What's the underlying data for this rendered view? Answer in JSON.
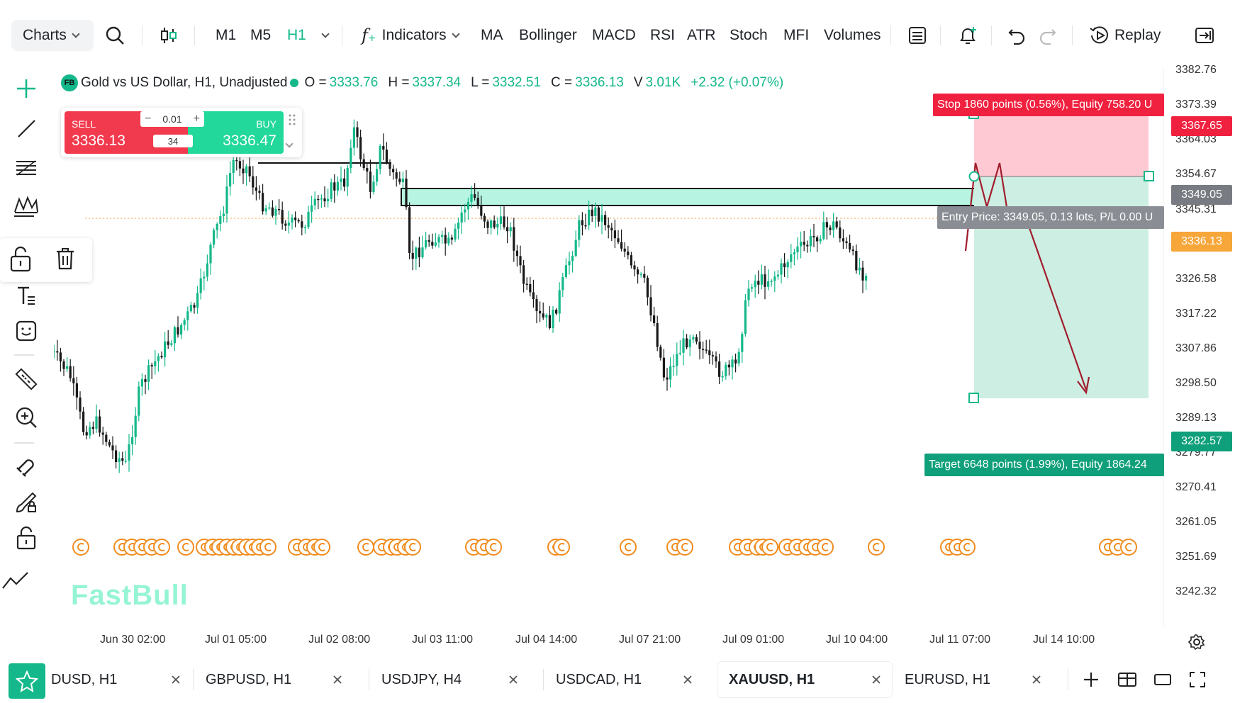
{
  "toolbar": {
    "charts_label": "Charts",
    "timeframes": [
      "M1",
      "M5",
      "H1"
    ],
    "active_timeframe": "H1",
    "indicators_label": "Indicators",
    "indicator_shortcuts": [
      "MA",
      "Bollinger",
      "MACD",
      "RSI",
      "ATR",
      "Stoch",
      "MFI",
      "Volumes"
    ],
    "replay_label": "Replay"
  },
  "legend": {
    "badge": "FB",
    "symbol_title": "Gold vs US Dollar, H1, Unadjusted",
    "o_label": "O =",
    "o_value": "3333.76",
    "h_label": "H =",
    "h_value": "3337.34",
    "l_label": "L =",
    "l_value": "3332.51",
    "c_label": "C =",
    "c_value": "3336.13",
    "v_label": "V",
    "v_value": "3.01K",
    "change": "+2.32 (+0.07%)"
  },
  "trade_widget": {
    "sell_label": "SELL",
    "sell_price": "3336.13",
    "buy_label": "BUY",
    "buy_price": "3336.47",
    "lot": "0.01",
    "spread": "34"
  },
  "position": {
    "stop_label": "Stop 1860 points (0.56%), Equity 758.20 U",
    "entry_label": "Entry Price: 3349.05, 0.13 lots, P/L 0.00 U",
    "target_label": "Target 6648 points (1.99%), Equity 1864.24",
    "stop_price": "3367.65",
    "entry_price": "3349.05",
    "current_price": "3336.13",
    "target_price": "3282.57"
  },
  "price_axis": [
    "3382.76",
    "3373.39",
    "3364.03",
    "3354.67",
    "3345.31",
    "3336.13",
    "3326.58",
    "3317.22",
    "3307.86",
    "3298.50",
    "3289.13",
    "3279.77",
    "3270.41",
    "3261.05",
    "3251.69",
    "3242.32"
  ],
  "time_axis": [
    "Jun 30 02:00",
    "Jul 01 05:00",
    "Jul 02 08:00",
    "Jul 03 11:00",
    "Jul 04 14:00",
    "Jul 07 21:00",
    "Jul 09 01:00",
    "Jul 10 04:00",
    "Jul 11 07:00",
    "Jul 14 10:00"
  ],
  "watermark": "FastBull",
  "tabs": [
    {
      "label": "DUSD, H1",
      "active": false
    },
    {
      "label": "GBPUSD, H1",
      "active": false
    },
    {
      "label": "USDJPY, H4",
      "active": false
    },
    {
      "label": "USDCAD, H1",
      "active": false
    },
    {
      "label": "XAUUSD, H1",
      "active": true
    },
    {
      "label": "EURUSD, H1",
      "active": false
    }
  ],
  "colors": {
    "accent": "#14b88a",
    "bull": "#14b88a",
    "bear": "#1a1a1a",
    "sell": "#f23a4e",
    "buy": "#22d89a",
    "stop_zone": "#ffc9d4",
    "target_zone": "#cdeee2",
    "event_marker": "#f08c1e"
  }
}
